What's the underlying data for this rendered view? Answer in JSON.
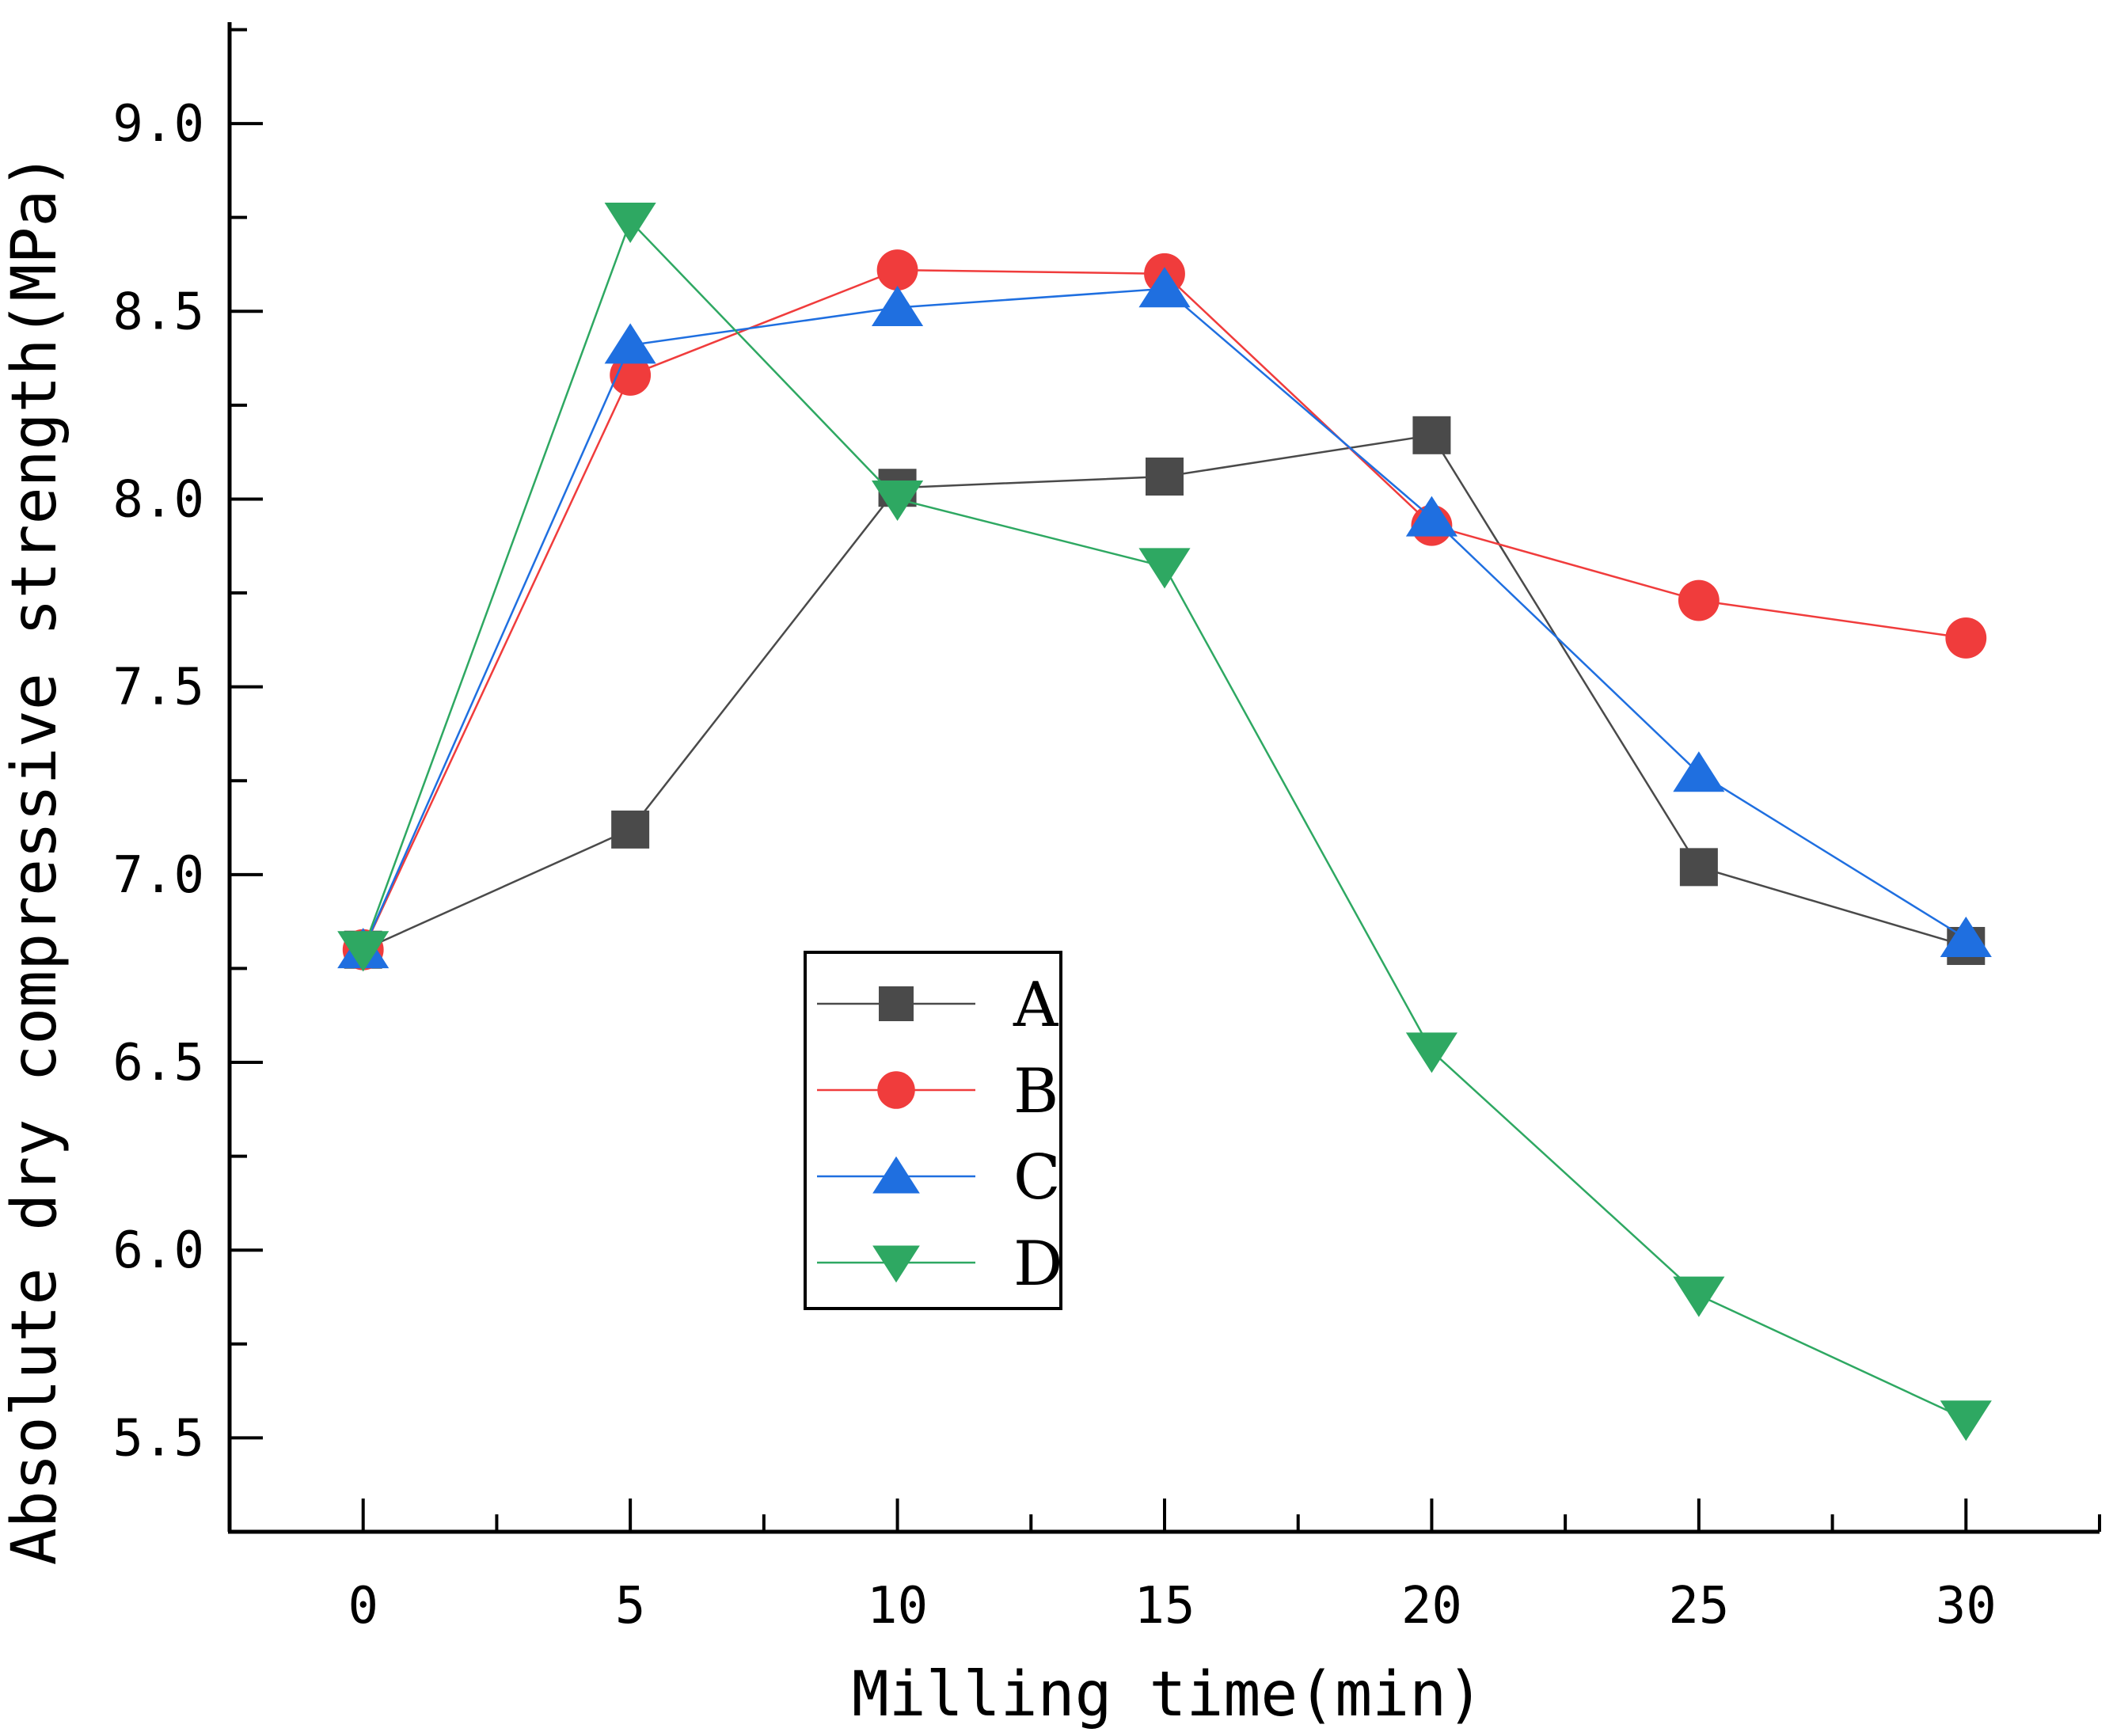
{
  "chart_data": {
    "type": "line",
    "title": "",
    "xlabel": "Milling time(min)",
    "ylabel": "Absolute dry compressive strength(MPa)",
    "x": [
      0,
      5,
      10,
      15,
      20,
      25,
      30
    ],
    "xticks": [
      "0",
      "5",
      "10",
      "15",
      "20",
      "25",
      "30"
    ],
    "yticks": [
      "5.5",
      "6.0",
      "6.5",
      "7.0",
      "7.5",
      "8.0",
      "8.5",
      "9.0"
    ],
    "xlim": [
      -2.5,
      32.5
    ],
    "ylim": [
      5.25,
      9.27
    ],
    "legend_position": "center",
    "series": [
      {
        "name": "A",
        "marker": "square",
        "color": "#4a4a4a",
        "line_color": "#4a4a4a",
        "values": [
          6.8,
          7.12,
          8.03,
          8.06,
          8.17,
          7.02,
          6.81
        ]
      },
      {
        "name": "B",
        "marker": "circle",
        "color": "#f03c3c",
        "line_color": "#f03c3c",
        "values": [
          6.8,
          8.33,
          8.61,
          8.6,
          7.93,
          7.73,
          7.63
        ]
      },
      {
        "name": "C",
        "marker": "triangle-up",
        "color": "#1f6fe0",
        "line_color": "#1f6fe0",
        "values": [
          6.8,
          8.41,
          8.51,
          8.56,
          7.95,
          7.27,
          6.83
        ]
      },
      {
        "name": "D",
        "marker": "triangle-down",
        "color": "#2ea862",
        "line_color": "#2ea862",
        "values": [
          6.8,
          8.74,
          8.0,
          7.82,
          6.53,
          5.88,
          5.55
        ]
      }
    ]
  }
}
